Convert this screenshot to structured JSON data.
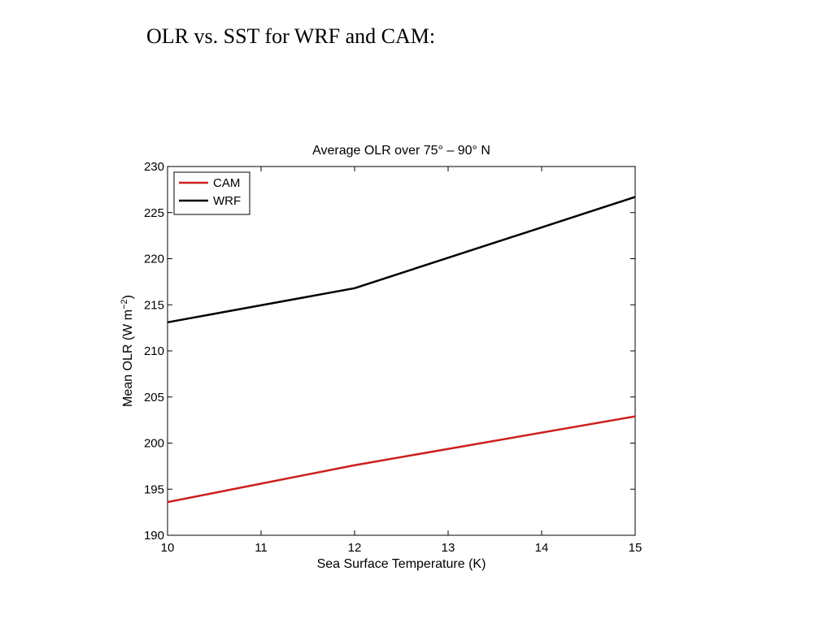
{
  "slide": {
    "title": "OLR vs. SST for WRF and CAM:"
  },
  "chart_data": {
    "type": "line",
    "title": "Average OLR over 75° – 90° N",
    "xlabel": "Sea Surface Temperature (K)",
    "ylabel": "Mean OLR (W m",
    "ylabel_superscript": "−2",
    "ylabel_suffix": ")",
    "xlim": [
      10,
      15
    ],
    "ylim": [
      190,
      230
    ],
    "xticks": [
      10,
      11,
      12,
      13,
      14,
      15
    ],
    "yticks": [
      190,
      195,
      200,
      205,
      210,
      215,
      220,
      225,
      230
    ],
    "grid": false,
    "legend_position": "top-left",
    "series": [
      {
        "name": "CAM",
        "color": "#cc1f1f",
        "x": [
          10,
          12,
          15
        ],
        "y": [
          193.6,
          197.6,
          202.9
        ]
      },
      {
        "name": "WRF",
        "color": "#000000",
        "x": [
          10,
          12,
          15
        ],
        "y": [
          213.1,
          216.8,
          226.7
        ]
      }
    ]
  }
}
